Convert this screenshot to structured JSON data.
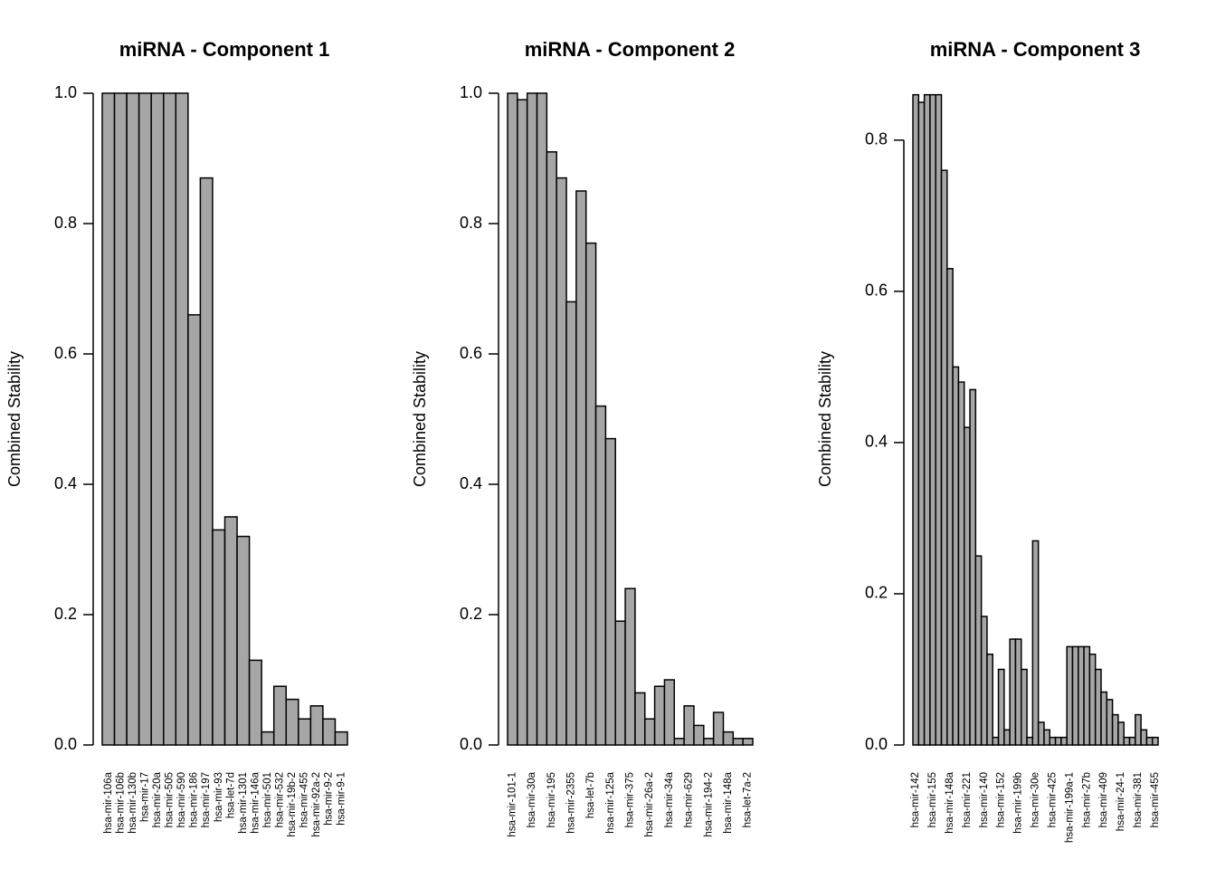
{
  "chart_data": [
    {
      "type": "bar",
      "title": "miRNA - Component 1",
      "y_label": "Combined Stability",
      "color": "#a6a6a6",
      "categories": [
        "hsa-mir-106a",
        "hsa-mir-106b",
        "hsa-mir-130b",
        "hsa-mir-17",
        "hsa-mir-20a",
        "hsa-mir-505",
        "hsa-mir-590",
        "hsa-mir-186",
        "hsa-mir-197",
        "hsa-mir-93",
        "hsa-let-7d",
        "hsa-mir-1301",
        "hsa-mir-146a",
        "hsa-mir-501",
        "hsa-mir-532",
        "hsa-mir-19b-2",
        "hsa-mir-455",
        "hsa-mir-92a-2",
        "hsa-mir-9-2",
        "hsa-mir-9-1"
      ],
      "values": [
        1,
        1,
        1,
        1,
        1,
        1,
        1,
        0.66,
        0.87,
        0.33,
        0.35,
        0.32,
        0.13,
        0.02,
        0.09,
        0.07,
        0.04,
        0.06,
        0.04,
        0.02
      ],
      "ylim": [
        0,
        1
      ],
      "yticks": [
        {
          "value": 0,
          "label": "0.0"
        },
        0.2,
        0.4,
        0.6,
        0.8,
        {
          "value": 1,
          "label": "1.0"
        }
      ]
    },
    {
      "type": "bar",
      "title": "miRNA - Component 2",
      "y_label": "Combined Stability",
      "color": "#a6a6a6",
      "categories": [
        "hsa-mir-101-1",
        null,
        "hsa-mir-30a",
        null,
        "hsa-mir-195",
        null,
        "hsa-mir-2355",
        null,
        "hsa-let-7b",
        null,
        "hsa-mir-125a",
        null,
        "hsa-mir-375",
        null,
        "hsa-mir-26a-2",
        null,
        "hsa-mir-34a",
        null,
        "hsa-mir-629",
        null,
        "hsa-mir-194-2",
        null,
        "hsa-mir-148a",
        null,
        "hsa-let-7a-2"
      ],
      "values": [
        1,
        0.99,
        1,
        1,
        0.91,
        0.87,
        0.68,
        0.85,
        0.77,
        0.52,
        0.47,
        0.19,
        0.24,
        0.08,
        0.04,
        0.09,
        0.1,
        0.01,
        0.06,
        0.03,
        0.01,
        0.05,
        0.02,
        0.01,
        0.01
      ],
      "ylim": [
        0,
        1
      ],
      "yticks": [
        {
          "value": 0,
          "label": "0.0"
        },
        0.2,
        0.4,
        0.6,
        0.8,
        {
          "value": 1,
          "label": "1.0"
        }
      ]
    },
    {
      "type": "bar",
      "title": "miRNA - Component 3",
      "y_label": "Combined Stability",
      "color": "#a6a6a6",
      "categories": [
        "hsa-mir-142",
        null,
        null,
        "hsa-mir-155",
        null,
        null,
        "hsa-mir-148a",
        null,
        null,
        "hsa-mir-221",
        null,
        null,
        "hsa-mir-140",
        null,
        null,
        "hsa-mir-152",
        null,
        null,
        "hsa-mir-199b",
        null,
        null,
        "hsa-mir-30e",
        null,
        null,
        "hsa-mir-425",
        null,
        null,
        "hsa-mir-199a-1",
        null,
        null,
        "hsa-mir-27b",
        null,
        null,
        "hsa-mir-409",
        null,
        null,
        "hsa-mir-24-1",
        null,
        null,
        "hsa-mir-381",
        null,
        null,
        "hsa-mir-455"
      ],
      "values": [
        0.86,
        0.85,
        0.86,
        0.86,
        0.86,
        0.76,
        0.63,
        0.5,
        0.48,
        0.42,
        0.47,
        0.25,
        0.17,
        0.12,
        0.01,
        0.1,
        0.02,
        0.14,
        0.14,
        0.1,
        0.01,
        0.27,
        0.03,
        0.02,
        0.01,
        0.01,
        0.01,
        0.13,
        0.13,
        0.13,
        0.13,
        0.12,
        0.1,
        0.07,
        0.06,
        0.04,
        0.03,
        0.01,
        0.01,
        0.04,
        0.02,
        0.01,
        0.01
      ],
      "ylim": [
        0,
        0.862
      ],
      "yticks": [
        {
          "value": 0,
          "label": "0.0"
        },
        0.2,
        0.4,
        0.6,
        0.8
      ]
    }
  ]
}
